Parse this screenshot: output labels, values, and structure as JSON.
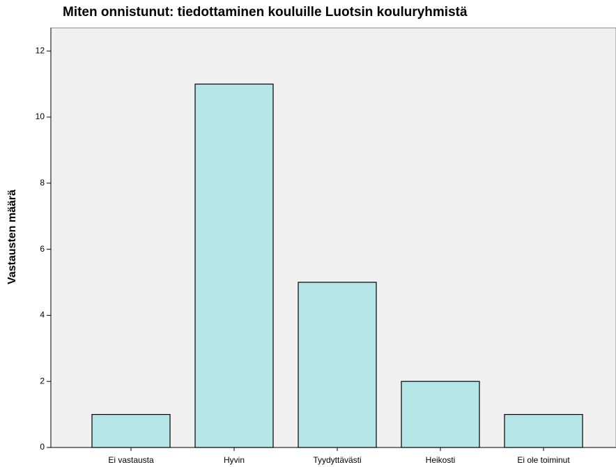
{
  "chart_data": {
    "type": "bar",
    "title": "Miten onnistunut: tiedottaminen kouluille Luotsin kouluryhmistä",
    "y_label": "Vastausten määrä",
    "categories": [
      "Ei vastausta",
      "Hyvin",
      "Tyydyttävästi",
      "Heikosti",
      "Ei ole toiminut"
    ],
    "values": [
      1,
      11,
      5,
      2,
      1
    ],
    "color": "#b5e5e6",
    "ylim": [
      0,
      12.7
    ],
    "yticks": [
      0,
      2,
      4,
      6,
      8,
      10,
      12
    ],
    "grid": false
  }
}
